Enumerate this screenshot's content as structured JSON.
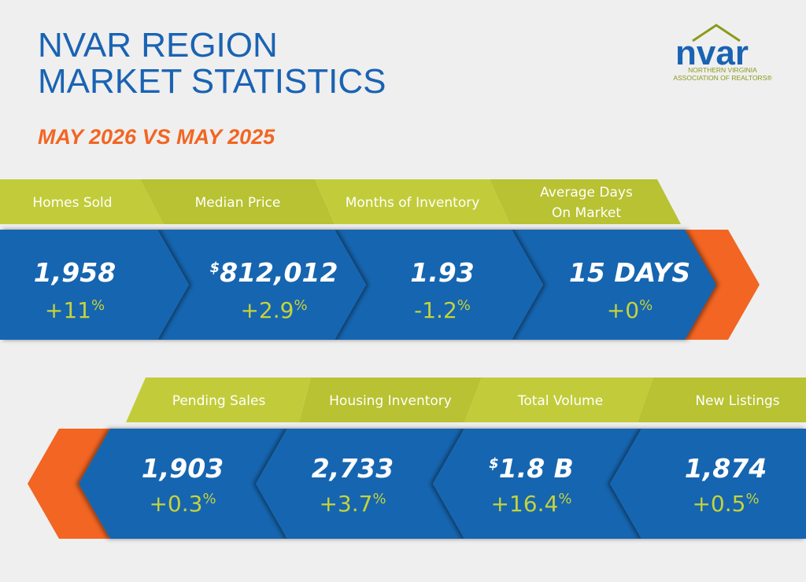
{
  "header": {
    "title_lines": [
      "NVAR REGION",
      "MARKET STATISTICS"
    ],
    "subtitle": "MAY 2026 VS MAY 2025"
  },
  "logo": {
    "wordmark": "nvar",
    "line1": "NORTHERN VIRGINIA",
    "line2": "ASSOCIATION OF REALTORS®"
  },
  "rows": [
    [
      {
        "label": [
          "Homes Sold"
        ],
        "prefix": null,
        "value": "1,958",
        "change": "+11",
        "change_unit": "%"
      },
      {
        "label": [
          "Median Price"
        ],
        "prefix": "$",
        "value": "812,012",
        "change": "+2.9",
        "change_unit": "%"
      },
      {
        "label": [
          "Months of Inventory"
        ],
        "prefix": null,
        "value": "1.93",
        "change": "-1.2",
        "change_unit": "%"
      },
      {
        "label": [
          "Average Days",
          "On Market"
        ],
        "prefix": null,
        "value": "15 DAYS",
        "change": "+0",
        "change_unit": "%"
      }
    ],
    [
      {
        "label": [
          "Pending Sales"
        ],
        "prefix": null,
        "value": "1,903",
        "change": "+0.3",
        "change_unit": "%"
      },
      {
        "label": [
          "Housing Inventory"
        ],
        "prefix": null,
        "value": "2,733",
        "change": "+3.7",
        "change_unit": "%"
      },
      {
        "label": [
          "Total Volume"
        ],
        "prefix": "$",
        "value": "1.8 B",
        "change": "+16.4",
        "change_unit": "%"
      },
      {
        "label": [
          "New Listings"
        ],
        "prefix": null,
        "value": "1,874",
        "change": "+0.5",
        "change_unit": "%"
      }
    ]
  ]
}
